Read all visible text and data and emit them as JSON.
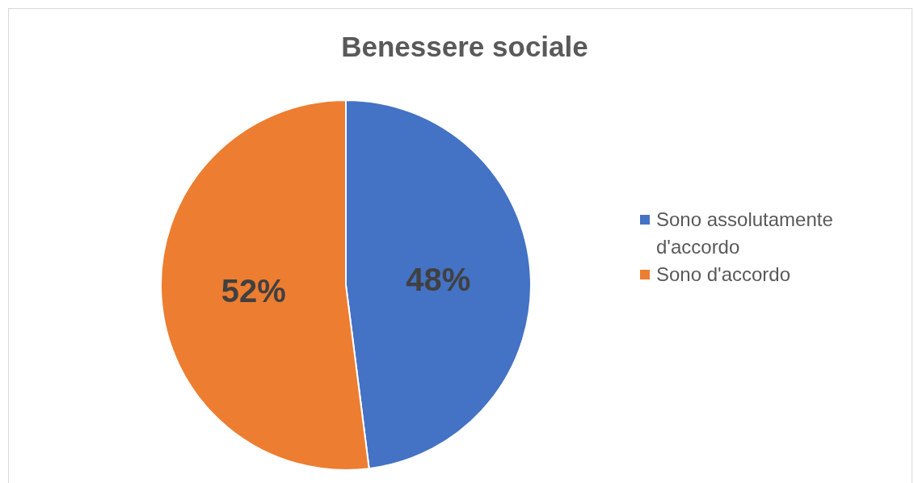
{
  "chart_data": {
    "type": "pie",
    "title": "Benessere sociale",
    "categories": [
      "Sono assolutamente d'accordo",
      "Sono d'accordo"
    ],
    "values": [
      48,
      52
    ],
    "colors": [
      "#4472c4",
      "#ed7d31"
    ],
    "value_labels": [
      "48%",
      "52%"
    ],
    "legend": "right"
  }
}
